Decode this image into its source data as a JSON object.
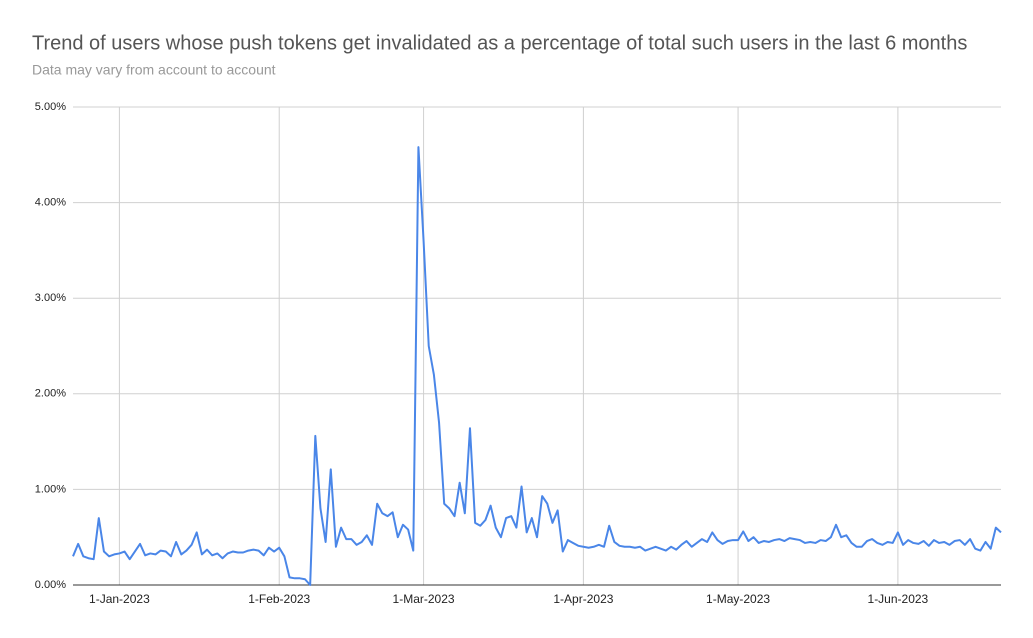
{
  "chart_data": {
    "type": "line",
    "title": "Trend of users whose push tokens get invalidated as a percentage of total such users in the last 6 months",
    "subtitle": "Data may vary from account to account",
    "x": [
      "2022-12-23",
      "2022-12-24",
      "2022-12-25",
      "2022-12-26",
      "2022-12-27",
      "2022-12-28",
      "2022-12-29",
      "2022-12-30",
      "2022-12-31",
      "2023-01-01",
      "2023-01-02",
      "2023-01-03",
      "2023-01-04",
      "2023-01-05",
      "2023-01-06",
      "2023-01-07",
      "2023-01-08",
      "2023-01-09",
      "2023-01-10",
      "2023-01-11",
      "2023-01-12",
      "2023-01-13",
      "2023-01-14",
      "2023-01-15",
      "2023-01-16",
      "2023-01-17",
      "2023-01-18",
      "2023-01-19",
      "2023-01-20",
      "2023-01-21",
      "2023-01-22",
      "2023-01-23",
      "2023-01-24",
      "2023-01-25",
      "2023-01-26",
      "2023-01-27",
      "2023-01-28",
      "2023-01-29",
      "2023-01-30",
      "2023-01-31",
      "2023-02-01",
      "2023-02-02",
      "2023-02-03",
      "2023-02-04",
      "2023-02-05",
      "2023-02-06",
      "2023-02-07",
      "2023-02-08",
      "2023-02-09",
      "2023-02-10",
      "2023-02-11",
      "2023-02-12",
      "2023-02-13",
      "2023-02-14",
      "2023-02-15",
      "2023-02-16",
      "2023-02-17",
      "2023-02-18",
      "2023-02-19",
      "2023-02-20",
      "2023-02-21",
      "2023-02-22",
      "2023-02-23",
      "2023-02-24",
      "2023-02-25",
      "2023-02-26",
      "2023-02-27",
      "2023-02-28",
      "2023-03-01",
      "2023-03-02",
      "2023-03-03",
      "2023-03-04",
      "2023-03-05",
      "2023-03-06",
      "2023-03-07",
      "2023-03-08",
      "2023-03-09",
      "2023-03-10",
      "2023-03-11",
      "2023-03-12",
      "2023-03-13",
      "2023-03-14",
      "2023-03-15",
      "2023-03-16",
      "2023-03-17",
      "2023-03-18",
      "2023-03-19",
      "2023-03-20",
      "2023-03-21",
      "2023-03-22",
      "2023-03-23",
      "2023-03-24",
      "2023-03-25",
      "2023-03-26",
      "2023-03-27",
      "2023-03-28",
      "2023-03-29",
      "2023-03-30",
      "2023-03-31",
      "2023-04-01",
      "2023-04-02",
      "2023-04-03",
      "2023-04-04",
      "2023-04-05",
      "2023-04-06",
      "2023-04-07",
      "2023-04-08",
      "2023-04-09",
      "2023-04-10",
      "2023-04-11",
      "2023-04-12",
      "2023-04-13",
      "2023-04-14",
      "2023-04-15",
      "2023-04-16",
      "2023-04-17",
      "2023-04-18",
      "2023-04-19",
      "2023-04-20",
      "2023-04-21",
      "2023-04-22",
      "2023-04-23",
      "2023-04-24",
      "2023-04-25",
      "2023-04-26",
      "2023-04-27",
      "2023-04-28",
      "2023-04-29",
      "2023-04-30",
      "2023-05-01",
      "2023-05-02",
      "2023-05-03",
      "2023-05-04",
      "2023-05-05",
      "2023-05-06",
      "2023-05-07",
      "2023-05-08",
      "2023-05-09",
      "2023-05-10",
      "2023-05-11",
      "2023-05-12",
      "2023-05-13",
      "2023-05-14",
      "2023-05-15",
      "2023-05-16",
      "2023-05-17",
      "2023-05-18",
      "2023-05-19",
      "2023-05-20",
      "2023-05-21",
      "2023-05-22",
      "2023-05-23",
      "2023-05-24",
      "2023-05-25",
      "2023-05-26",
      "2023-05-27",
      "2023-05-28",
      "2023-05-29",
      "2023-05-30",
      "2023-05-31",
      "2023-06-01",
      "2023-06-02",
      "2023-06-03",
      "2023-06-04",
      "2023-06-05",
      "2023-06-06",
      "2023-06-07",
      "2023-06-08",
      "2023-06-09",
      "2023-06-10",
      "2023-06-11",
      "2023-06-12",
      "2023-06-13",
      "2023-06-14",
      "2023-06-15",
      "2023-06-16",
      "2023-06-17",
      "2023-06-18",
      "2023-06-19",
      "2023-06-20",
      "2023-06-21"
    ],
    "series": [
      {
        "color": "#4a86e8",
        "values": [
          0.3,
          0.43,
          0.3,
          0.28,
          0.27,
          0.7,
          0.35,
          0.3,
          0.32,
          0.33,
          0.35,
          0.27,
          0.35,
          0.43,
          0.31,
          0.33,
          0.32,
          0.36,
          0.35,
          0.3,
          0.45,
          0.32,
          0.36,
          0.42,
          0.55,
          0.32,
          0.37,
          0.31,
          0.33,
          0.28,
          0.33,
          0.35,
          0.34,
          0.34,
          0.36,
          0.37,
          0.36,
          0.31,
          0.39,
          0.35,
          0.39,
          0.3,
          0.08,
          0.07,
          0.07,
          0.06,
          0,
          1.56,
          0.8,
          0.45,
          1.21,
          0.4,
          0.6,
          0.48,
          0.48,
          0.42,
          0.45,
          0.52,
          0.42,
          0.85,
          0.75,
          0.72,
          0.76,
          0.5,
          0.63,
          0.58,
          0.36,
          4.58,
          3.6,
          2.5,
          2.2,
          1.7,
          0.85,
          0.8,
          0.72,
          1.07,
          0.75,
          1.64,
          0.65,
          0.62,
          0.68,
          0.83,
          0.6,
          0.5,
          0.7,
          0.72,
          0.6,
          1.03,
          0.55,
          0.7,
          0.5,
          0.93,
          0.85,
          0.65,
          0.78,
          0.35,
          0.47,
          0.44,
          0.41,
          0.4,
          0.39,
          0.4,
          0.42,
          0.4,
          0.62,
          0.45,
          0.41,
          0.4,
          0.4,
          0.39,
          0.4,
          0.36,
          0.38,
          0.4,
          0.38,
          0.36,
          0.4,
          0.37,
          0.42,
          0.46,
          0.4,
          0.44,
          0.48,
          0.45,
          0.55,
          0.47,
          0.43,
          0.46,
          0.47,
          0.47,
          0.56,
          0.46,
          0.5,
          0.44,
          0.46,
          0.45,
          0.47,
          0.48,
          0.46,
          0.49,
          0.48,
          0.47,
          0.44,
          0.45,
          0.44,
          0.47,
          0.46,
          0.5,
          0.63,
          0.5,
          0.52,
          0.44,
          0.4,
          0.4,
          0.46,
          0.48,
          0.44,
          0.42,
          0.45,
          0.44,
          0.55,
          0.42,
          0.47,
          0.44,
          0.43,
          0.46,
          0.41,
          0.47,
          0.44,
          0.45,
          0.42,
          0.46,
          0.47,
          0.42,
          0.48,
          0.38,
          0.36,
          0.45,
          0.38,
          0.6,
          0.55
        ]
      }
    ],
    "xlim": [
      "2022-12-23",
      "2023-06-21"
    ],
    "xticks": [
      {
        "value": "2023-01-01",
        "label": "1-Jan-2023"
      },
      {
        "value": "2023-02-01",
        "label": "1-Feb-2023"
      },
      {
        "value": "2023-03-01",
        "label": "1-Mar-2023"
      },
      {
        "value": "2023-04-01",
        "label": "1-Apr-2023"
      },
      {
        "value": "2023-05-01",
        "label": "1-May-2023"
      },
      {
        "value": "2023-06-01",
        "label": "1-Jun-2023"
      }
    ],
    "ylim": [
      0,
      5
    ],
    "yticks": [
      {
        "value": 0,
        "label": "0.00%"
      },
      {
        "value": 1,
        "label": "1.00%"
      },
      {
        "value": 2,
        "label": "2.00%"
      },
      {
        "value": 3,
        "label": "3.00%"
      },
      {
        "value": 4,
        "label": "4.00%"
      },
      {
        "value": 5,
        "label": "5.00%"
      }
    ],
    "grid": true
  }
}
